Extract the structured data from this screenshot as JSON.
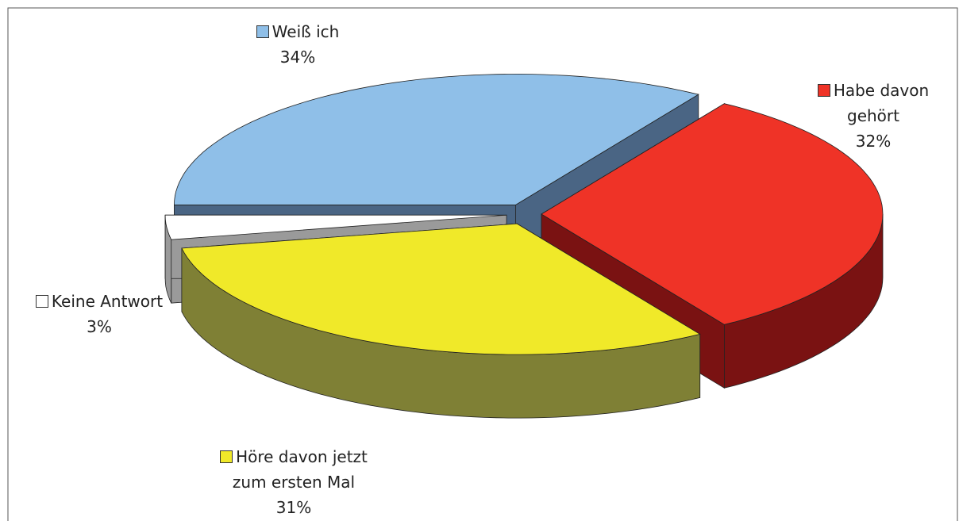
{
  "chart_data": {
    "type": "pie3d",
    "categories": [
      "Weiß ich",
      "Habe davon gehört",
      "Höre davon jetzt zum ersten Mal",
      "Keine Antwort"
    ],
    "values": [
      34,
      32,
      31,
      3
    ],
    "value_labels": [
      "34%",
      "32%",
      "31%",
      "3%"
    ],
    "colors": [
      "#8fbfe8",
      "#ef3327",
      "#f0e929",
      "#ffffff"
    ],
    "side_colors": [
      "#4a6584",
      "#7a1212",
      "#7f8035",
      "#9a9a9a"
    ]
  }
}
